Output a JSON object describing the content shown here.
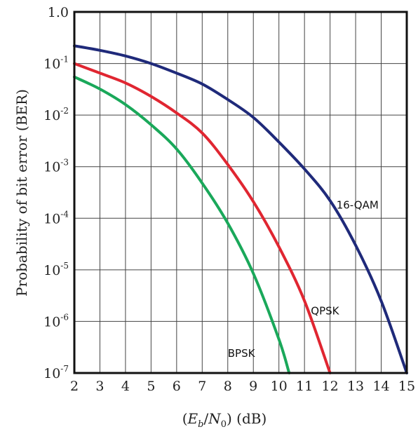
{
  "chart_data": {
    "type": "line",
    "title": "",
    "xlabel": "(Eb/N0) (dB)",
    "xlabel_parts": {
      "open": "(",
      "e": "E",
      "b": "b",
      "slash": "/",
      "n": "N",
      "zero": "0",
      "close": ")",
      "unit": " (dB)"
    },
    "ylabel": "Probability of bit error (BER)",
    "x_scale": "linear",
    "y_scale": "log",
    "xlim": [
      2,
      15
    ],
    "ylim": [
      1e-07,
      1.0
    ],
    "grid": true,
    "x_ticks": [
      "2",
      "3",
      "4",
      "5",
      "6",
      "7",
      "8",
      "9",
      "10",
      "11",
      "12",
      "13",
      "14",
      "15"
    ],
    "y_ticks": [
      {
        "value": 1.0,
        "base": "1.0",
        "exp": ""
      },
      {
        "value": 0.1,
        "base": "10",
        "exp": "-1"
      },
      {
        "value": 0.01,
        "base": "10",
        "exp": "-2"
      },
      {
        "value": 0.001,
        "base": "10",
        "exp": "-3"
      },
      {
        "value": 0.0001,
        "base": "10",
        "exp": "-4"
      },
      {
        "value": 1e-05,
        "base": "10",
        "exp": "-5"
      },
      {
        "value": 1e-06,
        "base": "10",
        "exp": "-6"
      },
      {
        "value": 1e-07,
        "base": "10",
        "exp": "-7"
      }
    ],
    "series": [
      {
        "name": "16-QAM",
        "color": "#1f2a7a",
        "points": [
          [
            2,
            0.22
          ],
          [
            3,
            0.18
          ],
          [
            4,
            0.14
          ],
          [
            5,
            0.1
          ],
          [
            6,
            0.065
          ],
          [
            7,
            0.04
          ],
          [
            8,
            0.02
          ],
          [
            9,
            0.009
          ],
          [
            10,
            0.003
          ],
          [
            11,
            0.0009
          ],
          [
            12,
            0.00022
          ],
          [
            13,
            3e-05
          ],
          [
            14,
            2.5e-06
          ],
          [
            15,
            1e-07
          ]
        ]
      },
      {
        "name": "QPSK",
        "color": "#e02631",
        "points": [
          [
            2,
            0.1
          ],
          [
            3,
            0.065
          ],
          [
            4,
            0.042
          ],
          [
            5,
            0.023
          ],
          [
            6,
            0.011
          ],
          [
            7,
            0.0045
          ],
          [
            8,
            0.0011
          ],
          [
            9,
            0.00021
          ],
          [
            10,
            2.8e-05
          ],
          [
            11,
            2.5e-06
          ],
          [
            12,
            1e-07
          ]
        ]
      },
      {
        "name": "BPSK",
        "color": "#1aa85a",
        "points": [
          [
            2,
            0.055
          ],
          [
            3,
            0.032
          ],
          [
            4,
            0.016
          ],
          [
            5,
            0.0065
          ],
          [
            6,
            0.0022
          ],
          [
            7,
            0.00048
          ],
          [
            8,
            8e-05
          ],
          [
            9,
            8.5e-06
          ],
          [
            10,
            4.5e-07
          ],
          [
            10.4,
            1e-07
          ]
        ]
      }
    ],
    "series_labels": [
      {
        "text": "16-QAM",
        "x": 12.25,
        "y": 0.00018
      },
      {
        "text": "QPSK",
        "x": 11.25,
        "y": 1.6e-06
      },
      {
        "text": "BPSK",
        "x": 8.0,
        "y": 2.4e-07
      }
    ]
  }
}
